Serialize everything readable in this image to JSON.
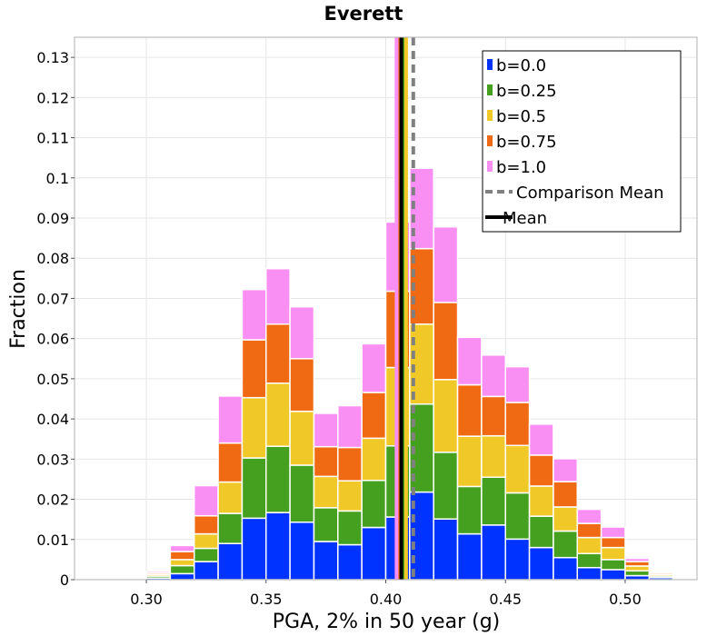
{
  "chart_data": {
    "type": "bar",
    "stacked": true,
    "title": "Everett",
    "xlabel": "PGA, 2% in 50 year (g)",
    "ylabel": "Fraction",
    "xlim": [
      0.27,
      0.53
    ],
    "ylim": [
      0,
      0.135
    ],
    "x_ticks": [
      0.3,
      0.35,
      0.4,
      0.45,
      0.5
    ],
    "x_tick_labels": [
      "0.30",
      "0.35",
      "0.40",
      "0.45",
      "0.50"
    ],
    "y_ticks": [
      0,
      0.01,
      0.02,
      0.03,
      0.04,
      0.05,
      0.06,
      0.07,
      0.08,
      0.09,
      0.1,
      0.11,
      0.12,
      0.13
    ],
    "y_tick_labels": [
      "0",
      "0.01",
      "0.02",
      "0.03",
      "0.04",
      "0.05",
      "0.06",
      "0.07",
      "0.08",
      "0.09",
      "0.1",
      "0.11",
      "0.12",
      "0.13"
    ],
    "grid": true,
    "legend_position": "top-right",
    "bin_width": 0.01,
    "bin_starts": [
      0.27,
      0.28,
      0.29,
      0.3,
      0.31,
      0.32,
      0.33,
      0.34,
      0.35,
      0.36,
      0.37,
      0.38,
      0.39,
      0.4,
      0.41,
      0.42,
      0.43,
      0.44,
      0.45,
      0.46,
      0.47,
      0.48,
      0.49,
      0.5,
      0.51,
      0.52
    ],
    "series": [
      {
        "name": "b=0.0",
        "color": "#0033ff",
        "values": [
          0,
          0.0001,
          0.0002,
          0.0004,
          0.0015,
          0.0045,
          0.009,
          0.0153,
          0.0167,
          0.0143,
          0.0095,
          0.0087,
          0.013,
          0.0156,
          0.0218,
          0.0151,
          0.0114,
          0.0136,
          0.0101,
          0.008,
          0.0055,
          0.003,
          0.0025,
          0.001,
          0.0005,
          0.0001
        ]
      },
      {
        "name": "b=0.25",
        "color": "#46a020",
        "values": [
          0,
          0.0001,
          0.0002,
          0.0005,
          0.002,
          0.0033,
          0.0075,
          0.015,
          0.0165,
          0.0142,
          0.0084,
          0.0084,
          0.0117,
          0.0177,
          0.0219,
          0.0166,
          0.0118,
          0.0119,
          0.0115,
          0.0078,
          0.0066,
          0.0035,
          0.0025,
          0.0012,
          0.0004,
          0.0001
        ]
      },
      {
        "name": "b=0.5",
        "color": "#f0c828",
        "values": [
          0,
          0.0001,
          0.0002,
          0.0004,
          0.0015,
          0.0036,
          0.0078,
          0.015,
          0.0157,
          0.0134,
          0.0078,
          0.0075,
          0.0105,
          0.0195,
          0.0199,
          0.0181,
          0.0125,
          0.0103,
          0.0118,
          0.0075,
          0.006,
          0.004,
          0.003,
          0.0012,
          0.0004,
          0.0001
        ]
      },
      {
        "name": "b=0.75",
        "color": "#f06a14",
        "values": [
          0,
          0.0001,
          0.0002,
          0.0004,
          0.002,
          0.0045,
          0.0097,
          0.0144,
          0.0147,
          0.0131,
          0.0074,
          0.0083,
          0.0114,
          0.019,
          0.0188,
          0.0192,
          0.0128,
          0.0098,
          0.0107,
          0.0077,
          0.0063,
          0.0035,
          0.0025,
          0.0011,
          0.0004,
          0.0001
        ]
      },
      {
        "name": "b=1.0",
        "color": "#f98ef3",
        "values": [
          0,
          0.0001,
          0.0002,
          0.0004,
          0.0015,
          0.0075,
          0.0117,
          0.0125,
          0.0138,
          0.0129,
          0.0083,
          0.0104,
          0.0121,
          0.0172,
          0.02,
          0.0188,
          0.0118,
          0.0103,
          0.0089,
          0.0077,
          0.0057,
          0.0035,
          0.0026,
          0.0008,
          0.0003,
          0.0001
        ]
      }
    ],
    "vertical_lines": [
      {
        "name": "Comparison Mean",
        "x": 0.4115,
        "style": "dashed",
        "color": "#808080"
      },
      {
        "name": "Mean",
        "x": 0.4065,
        "style": "solid",
        "color": "#000000"
      }
    ],
    "mean_markers": [
      {
        "series": "b=0.0",
        "x": 0.4061,
        "color": "#0033ff"
      },
      {
        "series": "b=0.25",
        "x": 0.4073,
        "color": "#46a020"
      },
      {
        "series": "b=0.5",
        "x": 0.4085,
        "color": "#f0c828"
      },
      {
        "series": "b=0.75",
        "x": 0.4054,
        "color": "#f06a14"
      },
      {
        "series": "b=1.0",
        "x": 0.4045,
        "color": "#f98ef3"
      }
    ]
  }
}
